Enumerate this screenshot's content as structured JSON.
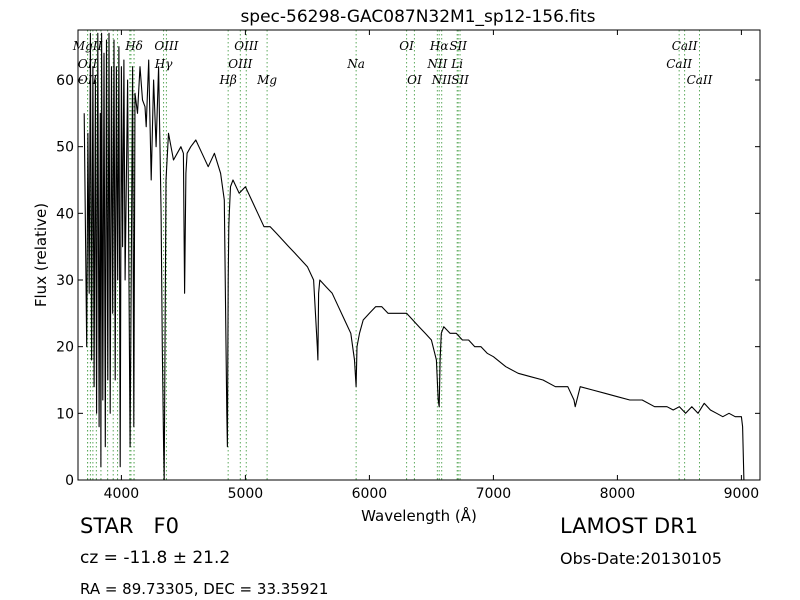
{
  "chart_data": {
    "type": "line",
    "title": "spec-56298-GAC087N32M1_sp12-156.fits",
    "xlabel": "Wavelength (Å)",
    "ylabel": "Flux (relative)",
    "xlim": [
      3650,
      9150
    ],
    "ylim": [
      0,
      67.5
    ],
    "xticks": [
      4000,
      5000,
      6000,
      7000,
      8000,
      9000
    ],
    "yticks": [
      0,
      10,
      20,
      30,
      40,
      50,
      60
    ],
    "grid": false,
    "line_color": "#000000",
    "marker_color": "#5daa5d",
    "series": [
      {
        "x": [
          3700,
          3720,
          3730,
          3740,
          3750,
          3760,
          3770,
          3780,
          3790,
          3800,
          3810,
          3820,
          3830,
          3835,
          3840,
          3850,
          3860,
          3870,
          3880,
          3890,
          3900,
          3910,
          3920,
          3930,
          3940,
          3950,
          3960,
          3970,
          3980,
          3990,
          4000,
          4010,
          4020,
          4030,
          4050,
          4070,
          4090,
          4100,
          4110,
          4130,
          4150,
          4170,
          4190,
          4200,
          4220,
          4240,
          4260,
          4280,
          4300,
          4320,
          4330,
          4340,
          4345,
          4350,
          4360,
          4380,
          4400,
          4420,
          4450,
          4480,
          4500,
          4510,
          4520,
          4530,
          4560,
          4600,
          4650,
          4700,
          4750,
          4800,
          4830,
          4850,
          4855,
          4861,
          4866,
          4870,
          4880,
          4900,
          4950,
          5000,
          5050,
          5100,
          5150,
          5200,
          5250,
          5300,
          5350,
          5400,
          5450,
          5500,
          5550,
          5580,
          5585,
          5590,
          5600,
          5650,
          5700,
          5750,
          5800,
          5850,
          5880,
          5893,
          5900,
          5920,
          5950,
          6000,
          6050,
          6100,
          6150,
          6200,
          6250,
          6300,
          6350,
          6400,
          6450,
          6500,
          6540,
          6555,
          6563,
          6570,
          6580,
          6600,
          6650,
          6700,
          6750,
          6800,
          6850,
          6900,
          6950,
          7000,
          7100,
          7200,
          7300,
          7400,
          7500,
          7600,
          7650,
          7660,
          7700,
          7800,
          7900,
          8000,
          8100,
          8200,
          8300,
          8400,
          8450,
          8500,
          8550,
          8600,
          8650,
          8700,
          8750,
          8800,
          8850,
          8900,
          8950,
          9000,
          9010,
          9020
        ],
        "y": [
          55,
          20,
          52,
          28,
          67,
          18,
          62,
          14,
          60,
          10,
          67,
          8,
          55,
          2,
          67,
          12,
          64,
          5,
          66,
          15,
          67,
          10,
          62,
          25,
          66,
          15,
          62,
          30,
          65,
          2,
          62,
          35,
          63,
          30,
          60,
          5,
          62,
          8,
          58,
          55,
          62,
          57,
          56,
          53,
          63,
          45,
          60,
          50,
          62,
          40,
          20,
          5,
          0,
          15,
          45,
          52,
          50,
          48,
          49,
          50,
          49,
          28,
          46,
          49,
          50,
          51,
          49,
          47,
          49,
          46,
          42,
          10,
          5,
          30,
          38,
          40,
          44,
          45,
          43,
          44,
          42,
          40,
          38,
          38,
          37,
          36,
          35,
          34,
          33,
          32,
          30,
          20,
          18,
          28,
          30,
          29,
          28,
          26,
          24,
          22,
          18,
          14,
          20,
          22,
          24,
          25,
          26,
          26,
          25,
          25,
          25,
          25,
          24,
          23,
          22,
          21,
          18,
          12,
          11,
          18,
          22,
          23,
          22,
          22,
          21,
          21,
          20,
          20,
          19,
          18.5,
          17,
          16,
          15.5,
          15,
          14,
          14,
          12,
          11,
          14,
          13.5,
          13,
          12.5,
          12,
          12,
          11,
          11,
          10.5,
          11,
          10,
          11,
          10,
          11.5,
          10.5,
          10,
          9.5,
          10,
          9.5,
          9.5,
          8,
          0
        ]
      }
    ],
    "markers": [
      {
        "label": "MgII",
        "x": 3727,
        "row": 1
      },
      {
        "label": "OII",
        "x": 3727,
        "row": 2
      },
      {
        "label": "OII",
        "x": 3727,
        "row": 3
      },
      {
        "label": "Hδ",
        "x": 4102,
        "row": 1
      },
      {
        "label": "Hγ",
        "x": 4340,
        "row": 2
      },
      {
        "label": "OIII",
        "x": 4363,
        "row": 1
      },
      {
        "label": "Hβ",
        "x": 4861,
        "row": 3
      },
      {
        "label": "OIII",
        "x": 4959,
        "row": 2
      },
      {
        "label": "OIII",
        "x": 5007,
        "row": 1
      },
      {
        "label": "Mg",
        "x": 5175,
        "row": 3
      },
      {
        "label": "Na",
        "x": 5893,
        "row": 2
      },
      {
        "label": "OI",
        "x": 6300,
        "row": 1
      },
      {
        "label": "OI",
        "x": 6363,
        "row": 3
      },
      {
        "label": "NII",
        "x": 6548,
        "row": 2
      },
      {
        "label": "NII",
        "x": 6583,
        "row": 3
      },
      {
        "label": "Hα",
        "x": 6563,
        "row": 1
      },
      {
        "label": "SII",
        "x": 6716,
        "row": 1
      },
      {
        "label": "SII",
        "x": 6731,
        "row": 3
      },
      {
        "label": "Li",
        "x": 6708,
        "row": 2
      },
      {
        "label": "CaII",
        "x": 8498,
        "row": 2
      },
      {
        "label": "CaII",
        "x": 8542,
        "row": 1
      },
      {
        "label": "CaII",
        "x": 8662,
        "row": 3
      }
    ],
    "extra_marker_lines": [
      3750,
      3770,
      3798,
      3835,
      3889,
      3934,
      3969,
      4068,
      4077,
      4102
    ]
  },
  "info": {
    "object_type": "STAR",
    "subclass": "F0",
    "survey": "LAMOST DR1",
    "cz": "cz = -11.8 ± 21.2",
    "obs_date": "Obs-Date:20130105",
    "radec": "RA = 89.73305, DEC = 33.35921"
  }
}
